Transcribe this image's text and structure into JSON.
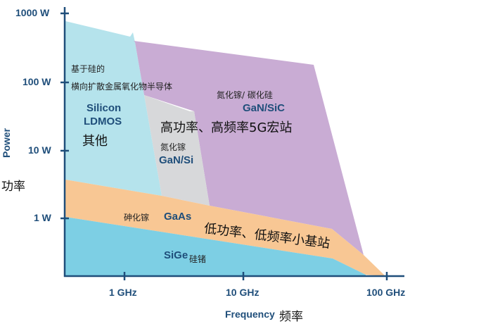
{
  "axes": {
    "y_title": "Power",
    "y_title_zh": "功率",
    "x_title": "Frequency",
    "x_title_zh": "频率",
    "y_ticks": [
      "1000 W",
      "100 W",
      "10 W",
      "1 W"
    ],
    "x_ticks": [
      "1 GHz",
      "10 GHz",
      "100 GHz"
    ],
    "x_scale": "log",
    "y_scale": "log"
  },
  "regions": {
    "ldmos": {
      "zh_line1": "基于硅的",
      "zh_line2": "横向扩散金属氧化物半导体",
      "en_line1": "Silicon",
      "en_line2": "LDMOS",
      "zh_extra": "其他",
      "color": "#b5e3ec"
    },
    "gan_sic": {
      "zh": "氮化镓/ 碳化硅",
      "en": "GaN/SiC",
      "color": "#c9acd4"
    },
    "gan_si": {
      "zh": "氮化镓",
      "en": "GaN/Si",
      "color": "#d7d8da"
    },
    "gaas": {
      "zh": "砷化镓",
      "en": "GaAs",
      "color": "#f8c794"
    },
    "sige": {
      "zh": "硅锗",
      "en": "SiGe",
      "color": "#7dcfe4"
    }
  },
  "annotations": {
    "high": "高功率、高频率5G宏站",
    "low": "低功率、低频率小基站"
  },
  "axis_color": "#1f4e7a"
}
